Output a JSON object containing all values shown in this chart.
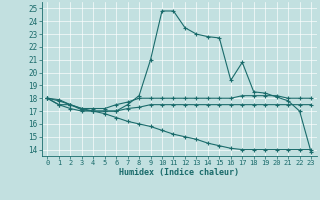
{
  "xlabel": "Humidex (Indice chaleur)",
  "bg_color": "#c2e0e0",
  "line_color": "#1a6b6b",
  "grid_color": "#aad4d4",
  "xlim": [
    -0.5,
    23.5
  ],
  "ylim": [
    13.5,
    25.5
  ],
  "yticks": [
    14,
    15,
    16,
    17,
    18,
    19,
    20,
    21,
    22,
    23,
    24,
    25
  ],
  "xticks": [
    0,
    1,
    2,
    3,
    4,
    5,
    6,
    7,
    8,
    9,
    10,
    11,
    12,
    13,
    14,
    15,
    16,
    17,
    18,
    19,
    20,
    21,
    22,
    23
  ],
  "series": [
    [
      18.0,
      17.9,
      17.5,
      17.1,
      17.0,
      17.0,
      17.0,
      17.5,
      18.2,
      21.0,
      24.8,
      24.8,
      23.5,
      23.0,
      22.8,
      22.7,
      19.4,
      20.8,
      18.5,
      18.4,
      18.1,
      17.8,
      17.0,
      13.8
    ],
    [
      18.0,
      17.5,
      17.5,
      17.2,
      17.2,
      17.2,
      17.5,
      17.7,
      18.0,
      18.0,
      18.0,
      18.0,
      18.0,
      18.0,
      18.0,
      18.0,
      18.0,
      18.2,
      18.2,
      18.2,
      18.2,
      18.0,
      18.0,
      18.0
    ],
    [
      18.0,
      17.5,
      17.2,
      17.0,
      17.0,
      17.0,
      17.0,
      17.2,
      17.3,
      17.5,
      17.5,
      17.5,
      17.5,
      17.5,
      17.5,
      17.5,
      17.5,
      17.5,
      17.5,
      17.5,
      17.5,
      17.5,
      17.5,
      17.5
    ],
    [
      18.0,
      17.8,
      17.5,
      17.2,
      17.0,
      16.8,
      16.5,
      16.2,
      16.0,
      15.8,
      15.5,
      15.2,
      15.0,
      14.8,
      14.5,
      14.3,
      14.1,
      14.0,
      14.0,
      14.0,
      14.0,
      14.0,
      14.0,
      14.0
    ]
  ]
}
